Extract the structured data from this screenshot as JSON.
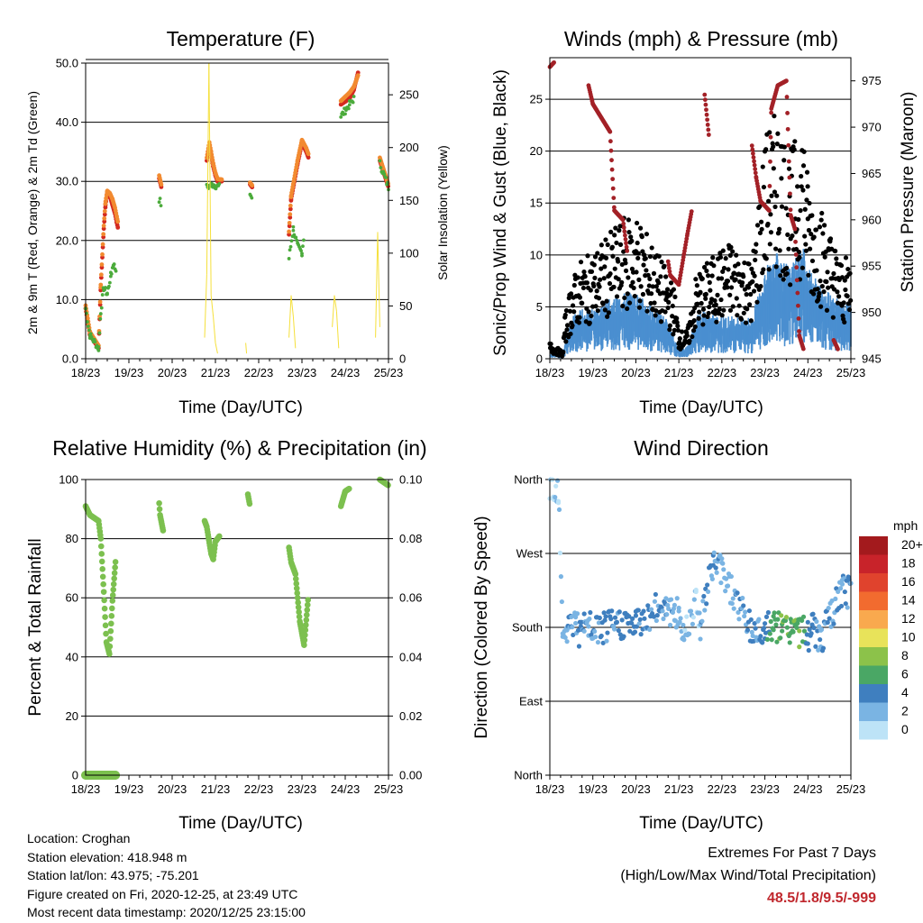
{
  "panels": {
    "temperature": {
      "title": "Temperature (F)",
      "ylabel_left": "2m & 9m T (Red, Orange) & 2m Td (Green)",
      "ylabel_right": "Solar Insolation (Yellow)",
      "xlabel": "Time (Day/UTC)"
    },
    "winds": {
      "title": "Winds (mph) & Pressure (mb)",
      "ylabel_left": "Sonic/Prop Wind & Gust (Blue, Black)",
      "ylabel_right": "Station Pressure (Maroon)",
      "xlabel": "Time (Day/UTC)"
    },
    "humidity": {
      "title": "Relative Humidity (%) & Precipitation (in)",
      "ylabel_left": "Percent & Total Rainfall",
      "xlabel": "Time (Day/UTC)"
    },
    "direction": {
      "title": "Wind Direction",
      "ylabel_left": "Direction (Colored By Speed)",
      "xlabel": "Time (Day/UTC)"
    }
  },
  "colorbar": {
    "title": "mph",
    "labels": [
      "20+",
      "18",
      "16",
      "14",
      "12",
      "10",
      "8",
      "6",
      "4",
      "2",
      "0"
    ],
    "colors": [
      "#a31a1d",
      "#c8232a",
      "#e0432d",
      "#f26b2f",
      "#f9a94e",
      "#e8e35a",
      "#8cc24a",
      "#4aa765",
      "#3f7fbf",
      "#7ab4e3",
      "#bde3f7"
    ]
  },
  "info": {
    "location": "Location: Croghan",
    "elevation": "Station elevation: 418.948 m",
    "latlon": "Station lat/lon: 43.975; -75.201",
    "created": "Figure created on Fri, 2020-12-25, at 23:49 UTC",
    "recent": "Most recent data timestamp: 2020/12/25 23:15:00"
  },
  "extremes": {
    "line1": "Extremes For Past 7 Days",
    "line2": "(High/Low/Max Wind/Total Precipitation)",
    "values": "48.5/1.8/9.5/-999"
  },
  "chart_data": [
    {
      "type": "scatter",
      "title": "Temperature (F)",
      "xlabel": "Time (Day/UTC)",
      "ylabel": "2m & 9m T (Red, Orange) & 2m Td (Green)",
      "y2label": "Solar Insolation (Yellow)",
      "xlim": [
        18,
        25
      ],
      "xticks": [
        "18/23",
        "19/23",
        "20/23",
        "21/23",
        "22/23",
        "23/23",
        "24/23",
        "25/23"
      ],
      "ylim": [
        0,
        50
      ],
      "yticks": [
        "0.0",
        "10.0",
        "20.0",
        "30.0",
        "40.0",
        "50.0"
      ],
      "y2lim": [
        0,
        280
      ],
      "y2ticks": [
        "0",
        "50",
        "100",
        "150",
        "200",
        "250"
      ],
      "series": [
        {
          "name": "2m T",
          "color": "#d42a20",
          "kind": "line",
          "x": [
            18.0,
            18.1,
            18.3,
            18.35,
            18.42,
            18.46,
            18.5,
            18.56,
            18.62,
            18.68,
            18.72,
            18.75,
            19.7,
            19.75,
            20.8,
            20.86,
            20.9,
            20.95,
            21.0,
            21.05,
            21.15,
            21.8,
            21.85,
            22.7,
            22.75,
            22.9,
            23.0,
            23.1,
            23.15,
            23.9,
            24.0,
            24.1,
            24.2,
            24.3,
            24.8,
            25.0
          ],
          "y": [
            8.5,
            4.0,
            1.8,
            12.0,
            22.0,
            26.0,
            28.0,
            27.5,
            26.0,
            24.5,
            23.0,
            22.0,
            30.5,
            29.0,
            33.5,
            36.0,
            34.5,
            32.5,
            31.0,
            30.0,
            30.0,
            29.5,
            29.0,
            21.0,
            27.0,
            33.0,
            36.5,
            35.0,
            34.0,
            43.0,
            43.5,
            44.0,
            45.5,
            48.5,
            33.5,
            29.0
          ]
        },
        {
          "name": "9m T",
          "color": "#f28a30",
          "kind": "line",
          "x": [
            18.0,
            18.1,
            18.3,
            18.35,
            18.42,
            18.46,
            18.5,
            18.56,
            18.62,
            18.68,
            18.72,
            18.75,
            19.7,
            19.75,
            20.8,
            20.86,
            20.9,
            20.95,
            21.0,
            21.05,
            21.15,
            21.8,
            21.85,
            22.7,
            22.75,
            22.9,
            23.0,
            23.1,
            23.15,
            23.9,
            24.0,
            24.1,
            24.2,
            24.3,
            24.8,
            25.0
          ],
          "y": [
            9.0,
            4.5,
            2.2,
            12.5,
            22.5,
            26.6,
            28.4,
            28.0,
            27.0,
            25.5,
            24.0,
            23.0,
            31.0,
            29.4,
            34.0,
            36.6,
            35.0,
            33.0,
            31.4,
            30.4,
            30.3,
            29.8,
            29.3,
            21.5,
            27.6,
            33.6,
            37.0,
            35.6,
            34.6,
            43.6,
            44.3,
            45.0,
            46.0,
            48.0,
            34.0,
            29.4
          ]
        },
        {
          "name": "2m Td",
          "color": "#4bab3b",
          "kind": "dots",
          "x": [
            18.0,
            18.1,
            18.3,
            18.35,
            18.42,
            18.5,
            18.58,
            18.64,
            18.7,
            19.7,
            19.75,
            20.8,
            20.95,
            21.1,
            21.8,
            21.85,
            22.7,
            22.8,
            22.9,
            23.0,
            23.05,
            23.9,
            24.1,
            24.2,
            24.8,
            25.0
          ],
          "y": [
            8.5,
            4.0,
            1.8,
            8.0,
            12.0,
            11.0,
            14.0,
            16.0,
            15.0,
            27.0,
            26.0,
            29.0,
            29.5,
            29.0,
            28.0,
            27.0,
            17.0,
            22.0,
            19.0,
            18.0,
            21.0,
            41.0,
            43.0,
            44.0,
            33.0,
            29.0
          ]
        },
        {
          "name": "Solar Insolation",
          "color": "#f5e03b",
          "kind": "spikes",
          "axis": "y2",
          "x": [
            20.75,
            20.8,
            20.85,
            20.9,
            20.95,
            21.0,
            21.05,
            21.7,
            21.72,
            22.7,
            22.75,
            22.8,
            22.85,
            23.7,
            23.75,
            23.8,
            23.85,
            24.7,
            24.75,
            24.8
          ],
          "y": [
            20,
            80,
            280,
            60,
            40,
            15,
            5,
            15,
            5,
            20,
            60,
            40,
            10,
            30,
            60,
            45,
            10,
            20,
            120,
            30
          ]
        }
      ]
    },
    {
      "type": "scatter",
      "title": "Winds (mph) & Pressure (mb)",
      "xlabel": "Time (Day/UTC)",
      "ylabel": "Sonic/Prop Wind & Gust (Blue, Black)",
      "y2label": "Station Pressure (Maroon)",
      "xlim": [
        18,
        25
      ],
      "xticks": [
        "18/23",
        "19/23",
        "20/23",
        "21/23",
        "22/23",
        "23/23",
        "24/23",
        "25/23"
      ],
      "ylim": [
        0,
        29
      ],
      "yticks": [
        "0",
        "5",
        "10",
        "15",
        "20",
        "25"
      ],
      "y2lim": [
        945,
        977.5
      ],
      "y2ticks": [
        "945",
        "950",
        "955",
        "960",
        "965",
        "970",
        "975"
      ],
      "series": [
        {
          "name": "Sonic/Prop Wind",
          "color": "#4a8fd0",
          "kind": "band",
          "x": [
            18.0,
            18.3,
            18.35,
            18.5,
            18.7,
            18.95,
            19.7,
            20.0,
            20.7,
            20.9,
            21.0,
            21.2,
            21.4,
            21.5,
            21.85,
            22.2,
            22.7,
            23.0,
            23.3,
            23.6,
            23.9,
            24.0,
            24.3,
            24.8,
            25.0
          ],
          "y": [
            0.3,
            0.2,
            1.0,
            2.5,
            3.0,
            3.0,
            4.0,
            4.0,
            2.5,
            1.2,
            0.5,
            0.8,
            2.5,
            3.0,
            2.6,
            2.6,
            2.5,
            5.5,
            6.5,
            5.5,
            7.0,
            5.5,
            4.5,
            3.5,
            3.5
          ]
        },
        {
          "name": "Gust",
          "color": "#000000",
          "kind": "cloud",
          "x": [
            18.0,
            18.3,
            18.35,
            18.5,
            18.7,
            18.95,
            19.7,
            20.0,
            20.7,
            20.9,
            21.0,
            21.2,
            21.4,
            21.5,
            21.85,
            22.2,
            22.7,
            23.0,
            23.3,
            23.6,
            23.9,
            24.0,
            24.3,
            24.8,
            25.0
          ],
          "y": [
            1.2,
            0.5,
            3.0,
            5.5,
            7.0,
            7.5,
            10.0,
            10.5,
            6.5,
            5.0,
            2.0,
            2.0,
            6.0,
            6.5,
            7.5,
            8.5,
            7.0,
            16.0,
            18.0,
            15.0,
            17.5,
            13.0,
            11.0,
            7.0,
            7.5
          ]
        },
        {
          "name": "Station Pressure",
          "color": "#a32127",
          "kind": "line",
          "axis": "y2",
          "x": [
            18.0,
            18.1,
            18.9,
            19.0,
            19.2,
            19.4,
            19.5,
            19.7,
            19.8,
            20.75,
            20.8,
            21.0,
            21.2,
            21.3,
            21.6,
            21.7,
            22.7,
            22.8,
            22.9,
            23.0,
            23.1,
            23.15,
            23.3,
            23.5,
            23.6,
            23.7,
            23.8,
            23.9,
            24.6,
            24.7
          ],
          "y": [
            976.5,
            977.0,
            974.5,
            972.5,
            971.0,
            969.5,
            961.0,
            960.0,
            956.5,
            955.5,
            954.0,
            953.0,
            958.5,
            961.0,
            973.5,
            969.0,
            968.0,
            964.5,
            962.0,
            961.5,
            961.0,
            972.0,
            974.5,
            975.0,
            960.5,
            959.0,
            947.5,
            946.0,
            947.0,
            946.0
          ]
        }
      ]
    },
    {
      "type": "scatter",
      "title": "Relative Humidity (%) & Precipitation (in)",
      "xlabel": "Time (Day/UTC)",
      "ylabel": "Percent & Total Rainfall",
      "xlim": [
        18,
        25
      ],
      "xticks": [
        "18/23",
        "19/23",
        "20/23",
        "21/23",
        "22/23",
        "23/23",
        "24/23",
        "25/23"
      ],
      "ylim": [
        0,
        100
      ],
      "yticks": [
        "0",
        "20",
        "40",
        "60",
        "80",
        "100"
      ],
      "y2lim": [
        0,
        0.1
      ],
      "y2ticks": [
        "0.00",
        "0.02",
        "0.04",
        "0.06",
        "0.08",
        "0.10"
      ],
      "series": [
        {
          "name": "Relative Humidity",
          "color": "#7cc04f",
          "kind": "thick",
          "x": [
            18.0,
            18.1,
            18.3,
            18.35,
            18.42,
            18.48,
            18.55,
            18.62,
            18.7,
            19.7,
            19.72,
            19.8,
            20.75,
            20.8,
            20.9,
            20.95,
            21.0,
            21.1,
            21.75,
            21.8,
            22.7,
            22.75,
            22.85,
            22.95,
            23.05,
            23.15,
            23.9,
            24.0,
            24.1,
            24.8,
            25.0
          ],
          "y": [
            91.0,
            88.0,
            86.0,
            80.0,
            62.0,
            45.0,
            41.0,
            59.0,
            74.0,
            92.0,
            88.0,
            82.0,
            86.0,
            84.0,
            75.0,
            73.0,
            79.0,
            81.0,
            95.0,
            91.0,
            77.0,
            72.0,
            68.0,
            52.0,
            44.0,
            61.0,
            91.0,
            96.0,
            97.0,
            100.0,
            98.0
          ]
        },
        {
          "name": "Precipitation",
          "color": "#7cc04f",
          "kind": "flat",
          "x": [
            18.0,
            18.1,
            18.3,
            18.35,
            18.42,
            18.48,
            18.55,
            18.62,
            18.7
          ],
          "y": [
            0,
            0,
            0,
            0,
            0,
            0,
            0,
            0,
            0
          ]
        }
      ]
    },
    {
      "type": "scatter",
      "title": "Wind Direction",
      "xlabel": "Time (Day/UTC)",
      "ylabel": "Direction (Colored By Speed)",
      "xlim": [
        18,
        25
      ],
      "xticks": [
        "18/23",
        "19/23",
        "20/23",
        "21/23",
        "22/23",
        "23/23",
        "24/23",
        "25/23"
      ],
      "ylim": [
        0,
        360
      ],
      "yticks": [
        "North",
        "East",
        "South",
        "West",
        "North"
      ],
      "colorbar_label": "mph",
      "series": [
        {
          "name": "Direction",
          "kind": "colored",
          "x": [
            18.0,
            18.2,
            18.3,
            18.4,
            18.5,
            18.6,
            18.7,
            18.8,
            18.9,
            19.0,
            19.7,
            20.0,
            20.7,
            20.9,
            21.0,
            21.1,
            21.3,
            21.4,
            21.5,
            21.8,
            22.0,
            22.7,
            23.0,
            23.2,
            23.4,
            23.6,
            23.8,
            24.0,
            24.1,
            24.3,
            24.8,
            25.0
          ],
          "y": [
            355.0,
            350.0,
            180.0,
            175.0,
            185.0,
            190.0,
            170.0,
            178.0,
            182.0,
            175.0,
            185.0,
            183.0,
            210.0,
            190.0,
            200.0,
            170.0,
            200.0,
            215.0,
            185.0,
            260.0,
            250.0,
            175.0,
            178.0,
            180.0,
            178.0,
            180.0,
            176.0,
            170.0,
            180.0,
            165.0,
            225.0,
            220.0
          ],
          "speed": [
            1,
            1,
            2,
            3,
            3,
            2,
            4,
            3,
            2,
            3,
            4,
            4,
            3,
            2,
            2,
            1,
            2,
            1,
            2,
            3,
            2,
            3,
            4,
            6,
            7,
            6,
            7,
            4,
            4,
            3,
            3,
            3
          ]
        }
      ]
    }
  ]
}
